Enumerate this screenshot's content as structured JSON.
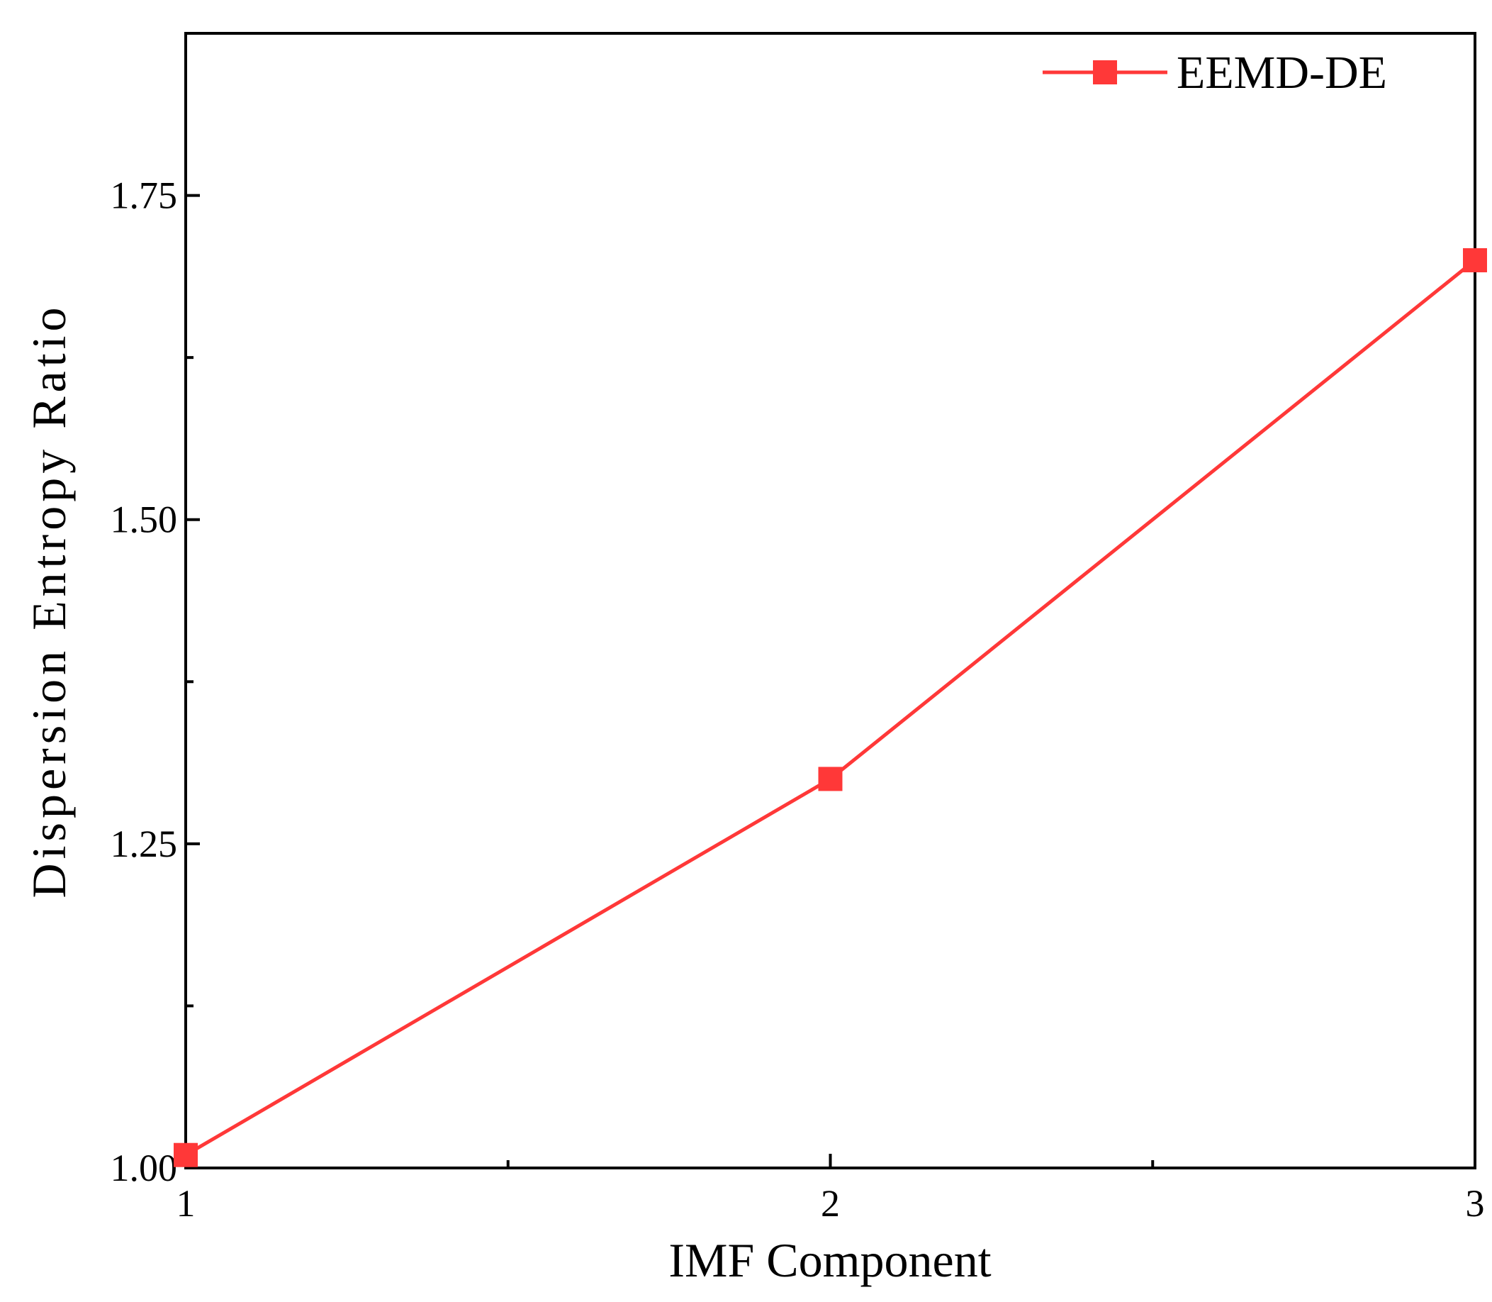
{
  "chart_data": {
    "type": "line",
    "x_label": "IMF Component",
    "y_label": "Dispersion Entropy Ratio",
    "x": [
      1,
      2,
      3
    ],
    "series": [
      {
        "name": "EEMD-DE",
        "color": "#ff3838",
        "values": [
          1.01,
          1.3,
          1.7
        ]
      }
    ],
    "xlim": [
      1,
      3
    ],
    "xticks": [
      1,
      2,
      3
    ],
    "ylim": [
      1.0,
      1.875
    ],
    "yticks": [
      {
        "value": 1.0,
        "label": "1.00"
      },
      {
        "value": 1.25,
        "label": "1.25"
      },
      {
        "value": 1.5,
        "label": "1.50"
      },
      {
        "value": 1.75,
        "label": "1.75"
      }
    ],
    "legend": "upper right",
    "grid": false
  }
}
